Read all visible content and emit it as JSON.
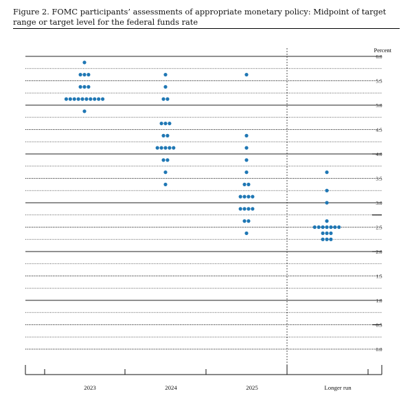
{
  "chart_data": {
    "type": "scatter",
    "title": "Figure 2.  FOMC participants’ assessments of appropriate monetary policy:  Midpoint of target range or target level for the federal funds rate",
    "ylabel": "Percent",
    "ylim": [
      0,
      6
    ],
    "y_ticks": [
      "0.0",
      "0.5",
      "1.0",
      "1.5",
      "2.0",
      "2.5",
      "3.0",
      "3.5",
      "4.0",
      "4.5",
      "5.0",
      "5.5",
      "6.0"
    ],
    "y_tick_values": [
      0,
      0.5,
      1,
      1.5,
      2,
      2.5,
      3,
      3.5,
      4,
      4.5,
      5,
      5.5,
      6
    ],
    "categories": [
      "2023",
      "2024",
      "2025",
      "Longer run"
    ],
    "dot_color": "#1f77b4",
    "series": [
      {
        "values": [
          {
            "y": 5.875,
            "count": 1
          },
          {
            "y": 5.625,
            "count": 3
          },
          {
            "y": 5.375,
            "count": 3
          },
          {
            "y": 5.125,
            "count": 10
          },
          {
            "y": 4.875,
            "count": 1
          }
        ]
      },
      {
        "values": [
          {
            "y": 5.625,
            "count": 1
          },
          {
            "y": 5.375,
            "count": 1
          },
          {
            "y": 5.125,
            "count": 2
          },
          {
            "y": 4.625,
            "count": 3
          },
          {
            "y": 4.375,
            "count": 2
          },
          {
            "y": 4.125,
            "count": 5
          },
          {
            "y": 3.875,
            "count": 2
          },
          {
            "y": 3.625,
            "count": 1
          },
          {
            "y": 3.375,
            "count": 1
          }
        ]
      },
      {
        "values": [
          {
            "y": 5.625,
            "count": 1
          },
          {
            "y": 4.375,
            "count": 1
          },
          {
            "y": 4.125,
            "count": 1
          },
          {
            "y": 3.875,
            "count": 1
          },
          {
            "y": 3.625,
            "count": 1
          },
          {
            "y": 3.375,
            "count": 2
          },
          {
            "y": 3.125,
            "count": 4
          },
          {
            "y": 2.875,
            "count": 4
          },
          {
            "y": 2.625,
            "count": 2
          },
          {
            "y": 2.375,
            "count": 1
          }
        ]
      },
      {
        "values": [
          {
            "y": 3.625,
            "count": 1
          },
          {
            "y": 3.25,
            "count": 1
          },
          {
            "y": 3.0,
            "count": 1
          },
          {
            "y": 2.625,
            "count": 1
          },
          {
            "y": 2.5,
            "count": 7
          },
          {
            "y": 2.375,
            "count": 3
          },
          {
            "y": 2.25,
            "count": 3
          }
        ]
      }
    ]
  }
}
